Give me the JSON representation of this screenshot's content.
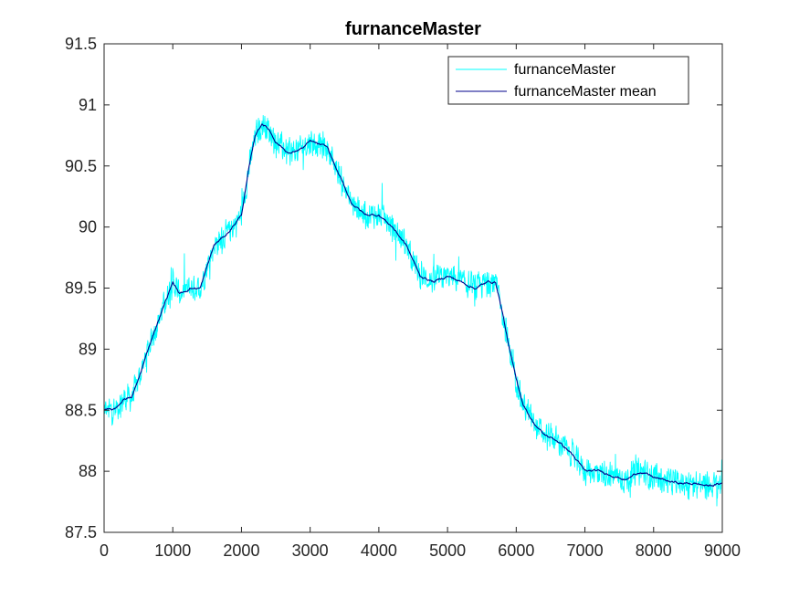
{
  "chart_data": {
    "type": "line",
    "title": "furnanceMaster",
    "xlabel": "",
    "ylabel": "",
    "xlim": [
      0,
      9000
    ],
    "ylim": [
      87.5,
      91.5
    ],
    "x_ticks": [
      0,
      1000,
      2000,
      3000,
      4000,
      5000,
      6000,
      7000,
      8000,
      9000
    ],
    "x_tick_labels": [
      "0",
      "1000",
      "2000",
      "3000",
      "4000",
      "5000",
      "6000",
      "7000",
      "8000",
      "9000"
    ],
    "y_ticks": [
      87.5,
      88,
      88.5,
      89,
      89.5,
      90,
      90.5,
      91,
      91.5
    ],
    "y_tick_labels": [
      "87.5",
      "88",
      "88.5",
      "89",
      "89.5",
      "90",
      "90.5",
      "91",
      "91.5"
    ],
    "grid": false,
    "legend_position": "top-right",
    "series": [
      {
        "name": "furnanceMaster",
        "color": "#00FFFF",
        "style": "noisy",
        "noise_amplitude": 0.13,
        "x": [
          0,
          150,
          300,
          400,
          500,
          700,
          900,
          1000,
          1100,
          1250,
          1400,
          1600,
          1800,
          2000,
          2100,
          2200,
          2300,
          2400,
          2500,
          2700,
          2900,
          3000,
          3100,
          3250,
          3400,
          3600,
          3800,
          4000,
          4200,
          4400,
          4600,
          4800,
          5000,
          5200,
          5400,
          5600,
          5700,
          5800,
          5900,
          6000,
          6100,
          6250,
          6400,
          6600,
          6800,
          7000,
          7200,
          7400,
          7600,
          7800,
          8000,
          8200,
          8400,
          8600,
          8800,
          9000
        ],
        "y": [
          88.5,
          88.5,
          88.6,
          88.6,
          88.75,
          89.1,
          89.4,
          89.55,
          89.45,
          89.5,
          89.5,
          89.85,
          89.95,
          90.1,
          90.45,
          90.75,
          90.85,
          90.8,
          90.7,
          90.6,
          90.65,
          90.7,
          90.68,
          90.65,
          90.45,
          90.2,
          90.1,
          90.1,
          90.0,
          89.85,
          89.6,
          89.55,
          89.6,
          89.55,
          89.5,
          89.55,
          89.55,
          89.3,
          89.0,
          88.75,
          88.55,
          88.4,
          88.3,
          88.25,
          88.15,
          88.0,
          88.0,
          87.97,
          87.93,
          88.0,
          87.95,
          87.92,
          87.9,
          87.9,
          87.88,
          87.9
        ]
      },
      {
        "name": "furnanceMaster mean",
        "color": "#00008B",
        "style": "smooth",
        "x": [
          0,
          150,
          300,
          400,
          500,
          700,
          900,
          1000,
          1100,
          1250,
          1400,
          1600,
          1800,
          2000,
          2100,
          2200,
          2300,
          2400,
          2500,
          2700,
          2900,
          3000,
          3100,
          3250,
          3400,
          3600,
          3800,
          4000,
          4200,
          4400,
          4600,
          4800,
          5000,
          5200,
          5400,
          5600,
          5700,
          5800,
          5900,
          6000,
          6100,
          6250,
          6400,
          6600,
          6800,
          7000,
          7200,
          7400,
          7600,
          7800,
          8000,
          8200,
          8400,
          8600,
          8800,
          9000
        ],
        "y": [
          88.5,
          88.5,
          88.6,
          88.6,
          88.75,
          89.1,
          89.4,
          89.55,
          89.45,
          89.5,
          89.5,
          89.85,
          89.95,
          90.1,
          90.45,
          90.75,
          90.85,
          90.8,
          90.7,
          90.6,
          90.65,
          90.7,
          90.68,
          90.65,
          90.45,
          90.2,
          90.1,
          90.1,
          90.0,
          89.85,
          89.6,
          89.55,
          89.6,
          89.55,
          89.5,
          89.55,
          89.55,
          89.3,
          89.0,
          88.75,
          88.55,
          88.4,
          88.3,
          88.25,
          88.15,
          88.0,
          88.0,
          87.97,
          87.93,
          88.0,
          87.95,
          87.92,
          87.9,
          87.9,
          87.88,
          87.9
        ]
      }
    ]
  }
}
